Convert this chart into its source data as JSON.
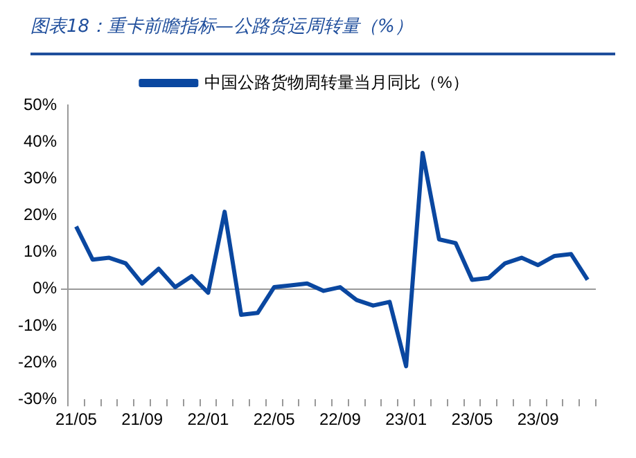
{
  "chart_data": {
    "type": "line",
    "title": "图表18：重卡前瞻指标—公路货运周转量（%）",
    "categories": [
      "21/05",
      null,
      null,
      null,
      "21/09",
      null,
      null,
      null,
      "22/01",
      null,
      null,
      null,
      "22/05",
      null,
      null,
      null,
      "22/09",
      null,
      null,
      null,
      "23/01",
      null,
      null,
      null,
      "23/05",
      null,
      null,
      null,
      "23/09",
      null,
      null,
      null
    ],
    "series": [
      {
        "name": "中国公路货物周转量当月同比（%）",
        "color": "#0a47a0",
        "values": [
          17,
          8,
          8.5,
          7,
          1.5,
          5.5,
          0.5,
          3.5,
          -1,
          21,
          -7,
          -6.5,
          0.5,
          1,
          1.5,
          -0.5,
          0.5,
          -3,
          -4.5,
          -3.5,
          -21,
          37,
          13.5,
          12.5,
          2.5,
          3,
          7,
          8.5,
          6.5,
          9,
          9.5,
          2.5
        ]
      }
    ],
    "ylim": [
      -30,
      50
    ],
    "yticks": [
      {
        "value": -30,
        "label": "-30%"
      },
      {
        "value": -20,
        "label": "-20%"
      },
      {
        "value": -10,
        "label": "-10%"
      },
      {
        "value": 0,
        "label": "0%"
      },
      {
        "value": 10,
        "label": "10%"
      },
      {
        "value": 20,
        "label": "20%"
      },
      {
        "value": 30,
        "label": "30%"
      },
      {
        "value": 40,
        "label": "40%"
      },
      {
        "value": 50,
        "label": "50%"
      }
    ],
    "legend": "top",
    "marker": "none"
  }
}
